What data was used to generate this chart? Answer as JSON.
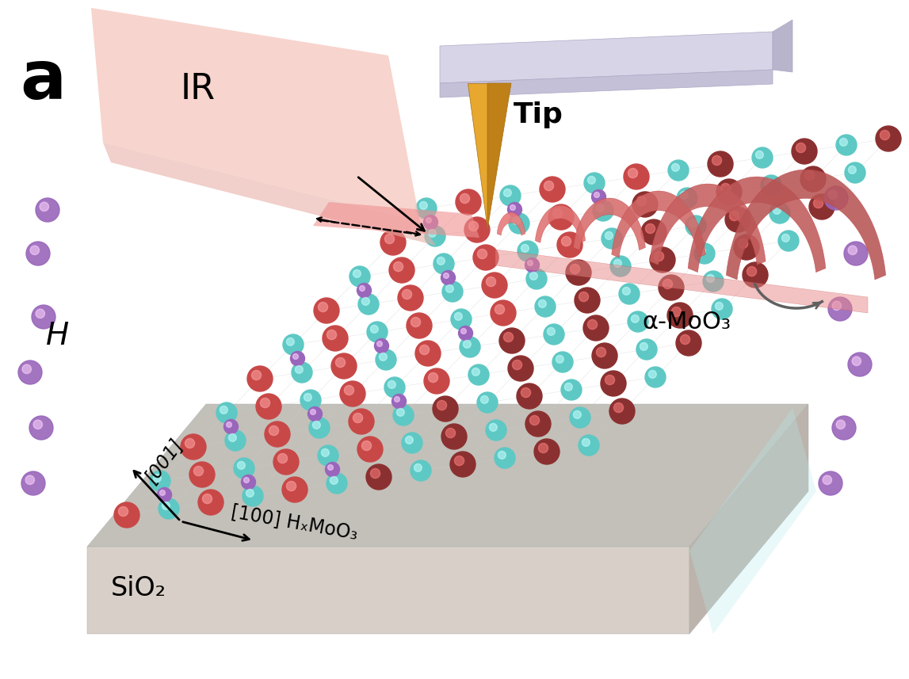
{
  "panel_label": "a",
  "bg_color": "#ffffff",
  "label_IR": "IR",
  "label_Tip": "Tip",
  "label_H": "H",
  "label_alpha_MoO3": "α-MoO₃",
  "label_HxMoO3": "[100] HₓMoO₃",
  "label_001": "[001]",
  "label_100": "[100]",
  "label_SiO2": "SiO₂",
  "color_teal": "#5ec8c4",
  "color_red": "#c84848",
  "color_purple": "#9966bb",
  "color_darkred": "#8b3030",
  "color_phonon": "#e87878",
  "color_tip_gold": "#d4921a",
  "color_substrate_top": "#cac0b8",
  "color_substrate_front": "#d8d0c8",
  "color_substrate_side": "#bcb4ac",
  "color_ir_beam": "#f0c0bc",
  "color_cantilever_top": "#d8d4e8",
  "color_cantilever_side": "#c4c0d8",
  "color_arrow": "#222222",
  "color_curved_arrow": "#606060"
}
